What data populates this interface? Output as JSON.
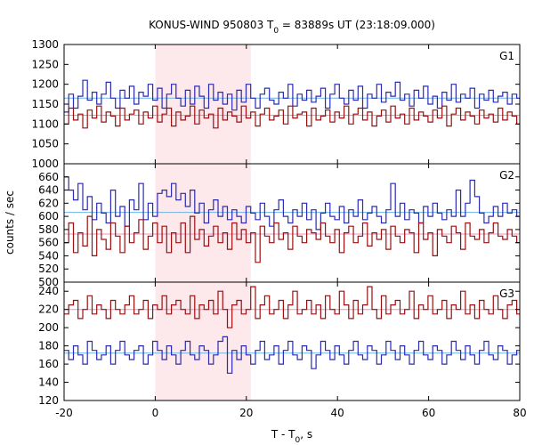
{
  "chart_data": {
    "type": "line",
    "title": "KONUS-WIND 950803 T",
    "title_sub": "0",
    "title_rest": " = 83889s UT (23:18:09.000)",
    "xlabel": "T - T",
    "xlabel_sub": "0",
    "xlabel_rest": ", s",
    "ylabel": "counts / sec",
    "xlim": [
      -20,
      80
    ],
    "x_ticks": [
      -20,
      0,
      20,
      40,
      60,
      80
    ],
    "x_tick_labels": [
      "-20",
      "0",
      "20",
      "40",
      "60",
      "80"
    ],
    "bin_width": 1.024,
    "highlight_interval": [
      0,
      21
    ],
    "grid": false,
    "colors": {
      "blue": "#2b2bb4",
      "red": "#9a1010",
      "blue_bg": "#6ab4e6",
      "red_bg": "#e890c0",
      "highlight": "#fde8ec"
    },
    "panels": [
      {
        "label": "G1",
        "ylim": [
          1000,
          1300
        ],
        "y_ticks": [
          1000,
          1050,
          1100,
          1150,
          1200,
          1250,
          1300
        ],
        "y_tick_labels": [
          "1000",
          "1050",
          "1100",
          "1150",
          "1200",
          "1250",
          "1300"
        ],
        "series": [
          {
            "color": "blue",
            "background_level": 1165,
            "values": [
              1130,
              1175,
              1140,
              1170,
              1210,
              1160,
              1180,
              1150,
              1175,
              1205,
              1165,
              1140,
              1185,
              1165,
              1195,
              1150,
              1180,
              1170,
              1200,
              1160,
              1190,
              1140,
              1175,
              1200,
              1165,
              1145,
              1185,
              1150,
              1195,
              1170,
              1140,
              1200,
              1160,
              1180,
              1150,
              1175,
              1135,
              1185,
              1155,
              1200,
              1165,
              1140,
              1175,
              1190,
              1160,
              1150,
              1180,
              1165,
              1200,
              1145,
              1175,
              1160,
              1185,
              1155,
              1170,
              1190,
              1140,
              1175,
              1200,
              1165,
              1150,
              1185,
              1160,
              1195,
              1140,
              1175,
              1165,
              1200,
              1155,
              1180,
              1170,
              1205,
              1160,
              1175,
              1145,
              1185,
              1165,
              1195,
              1150,
              1170,
              1140,
              1180,
              1160,
              1200,
              1155,
              1175,
              1165,
              1190,
              1140,
              1175,
              1160,
              1185,
              1155,
              1170,
              1180,
              1150,
              1175,
              1165
            ]
          },
          {
            "color": "red",
            "background_level": 1122,
            "values": [
              1100,
              1140,
              1110,
              1125,
              1090,
              1135,
              1115,
              1145,
              1105,
              1130,
              1120,
              1095,
              1140,
              1110,
              1125,
              1135,
              1100,
              1130,
              1115,
              1145,
              1105,
              1125,
              1140,
              1095,
              1130,
              1110,
              1120,
              1145,
              1100,
              1135,
              1115,
              1125,
              1090,
              1140,
              1110,
              1130,
              1120,
              1105,
              1145,
              1115,
              1130,
              1095,
              1125,
              1140,
              1110,
              1120,
              1135,
              1100,
              1145,
              1115,
              1125,
              1130,
              1095,
              1140,
              1110,
              1120,
              1135,
              1105,
              1130,
              1115,
              1145,
              1100,
              1125,
              1140,
              1110,
              1130,
              1095,
              1120,
              1135,
              1105,
              1145,
              1115,
              1125,
              1100,
              1140,
              1110,
              1130,
              1120,
              1105,
              1135,
              1115,
              1145,
              1095,
              1125,
              1140,
              1110,
              1130,
              1120,
              1100,
              1135,
              1115,
              1125,
              1105,
              1140,
              1110,
              1130,
              1120,
              1100
            ]
          }
        ]
      },
      {
        "label": "G2",
        "ylim": [
          500,
          680
        ],
        "y_ticks": [
          500,
          520,
          540,
          560,
          580,
          600,
          620,
          640,
          660
        ],
        "y_tick_labels": [
          "500",
          "520",
          "540",
          "560",
          "580",
          "600",
          "620",
          "640",
          "660"
        ],
        "series": [
          {
            "color": "blue",
            "background_level": 606,
            "values": [
              660,
              640,
              625,
              650,
              610,
              630,
              595,
              620,
              605,
              590,
              640,
              600,
              615,
              585,
              625,
              610,
              650,
              595,
              620,
              600,
              635,
              640,
              630,
              650,
              625,
              635,
              615,
              640,
              605,
              620,
              590,
              610,
              625,
              600,
              615,
              595,
              610,
              600,
              590,
              615,
              605,
              595,
              620,
              600,
              585,
              610,
              625,
              600,
              590,
              610,
              600,
              620,
              595,
              610,
              580,
              605,
              620,
              600,
              595,
              615,
              590,
              610,
              600,
              625,
              595,
              605,
              615,
              600,
              590,
              610,
              650,
              600,
              620,
              595,
              610,
              605,
              590,
              615,
              600,
              620,
              605,
              595,
              610,
              600,
              640,
              600,
              620,
              655,
              630,
              605,
              590,
              600,
              615,
              600,
              620,
              605,
              610,
              600
            ]
          },
          {
            "color": "red",
            "background_level": 573,
            "values": [
              560,
              590,
              545,
              575,
              555,
              600,
              540,
              580,
              565,
              550,
              590,
              570,
              545,
              585,
              560,
              575,
              595,
              550,
              570,
              590,
              560,
              585,
              545,
              575,
              560,
              590,
              545,
              600,
              565,
              580,
              555,
              570,
              585,
              560,
              575,
              550,
              590,
              565,
              580,
              560,
              575,
              530,
              585,
              570,
              560,
              590,
              565,
              575,
              550,
              585,
              570,
              560,
              580,
              575,
              565,
              590,
              570,
              560,
              580,
              545,
              575,
              585,
              560,
              570,
              590,
              555,
              575,
              565,
              580,
              550,
              585,
              570,
              560,
              580,
              575,
              545,
              590,
              565,
              575,
              540,
              580,
              570,
              560,
              585,
              575,
              550,
              590,
              570,
              565,
              580,
              560,
              575,
              590,
              570,
              565,
              580,
              570,
              560
            ]
          }
        ]
      },
      {
        "label": "G3",
        "ylim": [
          120,
          250
        ],
        "y_ticks": [
          120,
          140,
          160,
          180,
          200,
          220,
          240
        ],
        "y_tick_labels": [
          "120",
          "140",
          "160",
          "180",
          "200",
          "220",
          "240"
        ],
        "series": [
          {
            "color": "red",
            "background_level": 220,
            "values": [
              215,
              225,
              230,
              210,
              220,
              235,
              215,
              225,
              220,
              210,
              230,
              220,
              215,
              225,
              235,
              215,
              220,
              230,
              210,
              225,
              220,
              235,
              215,
              225,
              230,
              220,
              215,
              235,
              210,
              225,
              220,
              230,
              215,
              240,
              220,
              200,
              225,
              230,
              215,
              220,
              245,
              210,
              225,
              235,
              215,
              220,
              230,
              210,
              225,
              240,
              215,
              220,
              230,
              215,
              225,
              210,
              235,
              220,
              215,
              240,
              225,
              210,
              230,
              215,
              225,
              245,
              220,
              210,
              235,
              215,
              225,
              230,
              215,
              220,
              240,
              210,
              225,
              220,
              235,
              215,
              220,
              230,
              210,
              225,
              220,
              240,
              215,
              225,
              210,
              230,
              220,
              215,
              235,
              220,
              210,
              225,
              230,
              215
            ]
          },
          {
            "color": "blue",
            "background_level": 172,
            "values": [
              175,
              165,
              180,
              170,
              160,
              185,
              175,
              165,
              170,
              180,
              160,
              175,
              185,
              170,
              165,
              175,
              180,
              160,
              170,
              185,
              175,
              165,
              180,
              170,
              160,
              175,
              185,
              170,
              165,
              180,
              175,
              160,
              170,
              185,
              190,
              150,
              175,
              165,
              180,
              170,
              160,
              175,
              185,
              165,
              170,
              180,
              160,
              175,
              185,
              170,
              165,
              180,
              175,
              155,
              170,
              185,
              175,
              165,
              180,
              170,
              160,
              175,
              185,
              170,
              165,
              180,
              175,
              160,
              170,
              185,
              175,
              165,
              180,
              170,
              160,
              175,
              185,
              170,
              165,
              180,
              175,
              160,
              170,
              185,
              175,
              165,
              180,
              170,
              160,
              175,
              185,
              170,
              165,
              180,
              175,
              160,
              170,
              175
            ]
          }
        ]
      }
    ]
  }
}
